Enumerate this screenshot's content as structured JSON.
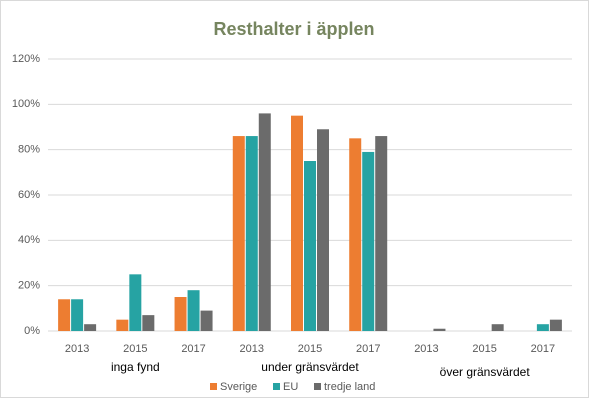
{
  "chart_data": {
    "type": "bar",
    "title": "Resthalter i äpplen",
    "categories": [
      "2013",
      "2015",
      "2017",
      "2013",
      "2015",
      "2017",
      "2013",
      "2015",
      "2017"
    ],
    "groups": [
      "inga fynd",
      "under gränsvärdet",
      "över gränsvärdet"
    ],
    "series": [
      {
        "name": "Sverige",
        "color": "#ed7d31",
        "values": [
          14,
          5,
          15,
          86,
          95,
          85,
          0,
          0,
          0
        ]
      },
      {
        "name": "EU",
        "color": "#26a3a3",
        "values": [
          14,
          25,
          18,
          86,
          75,
          79,
          0,
          0,
          3
        ]
      },
      {
        "name": "tredje land",
        "color": "#6b6b6b",
        "values": [
          3,
          7,
          9,
          96,
          89,
          86,
          1,
          3,
          5
        ]
      }
    ],
    "ylim": [
      0,
      120
    ],
    "yticks": [
      {
        "value": 0,
        "label": "0%"
      },
      {
        "value": 20,
        "label": "20%"
      },
      {
        "value": 40,
        "label": "40%"
      },
      {
        "value": 60,
        "label": "60%"
      },
      {
        "value": 80,
        "label": "80%"
      },
      {
        "value": 100,
        "label": "100%"
      },
      {
        "value": 120,
        "label": "120%"
      }
    ],
    "grid": true,
    "legend": "bottom"
  }
}
